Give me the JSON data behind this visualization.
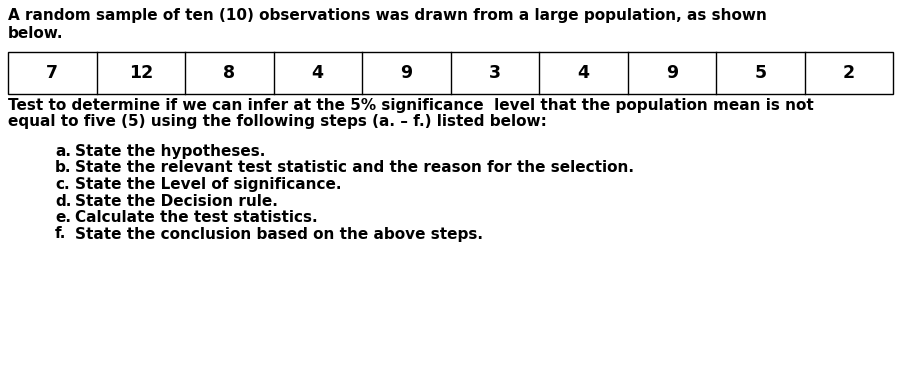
{
  "title_line1": "A random sample of ten (10) observations was drawn from a large population, as shown",
  "title_line2": "below.",
  "table_values": [
    "7",
    "12",
    "8",
    "4",
    "9",
    "3",
    "4",
    "9",
    "5",
    "2"
  ],
  "paragraph_line1": "Test to determine if we can infer at the 5% significance  level that the population mean is not",
  "paragraph_line2": "equal to five (5) using the following steps (a. – f.) listed below:",
  "items": [
    [
      "a.",
      "State the hypotheses."
    ],
    [
      "b.",
      "State the relevant test statistic and the reason for the selection."
    ],
    [
      "c.",
      "State the Level of significance."
    ],
    [
      "d.",
      "State the Decision rule."
    ],
    [
      "e.",
      "Calculate the test statistics."
    ],
    [
      "f.",
      "State the conclusion based on the above steps."
    ]
  ],
  "bg_color": "#ffffff",
  "text_color": "#000000",
  "table_border_color": "#000000",
  "font_size": 11.0,
  "font_size_table": 12.5,
  "font_family": "DejaVu Sans",
  "font_weight": "bold"
}
